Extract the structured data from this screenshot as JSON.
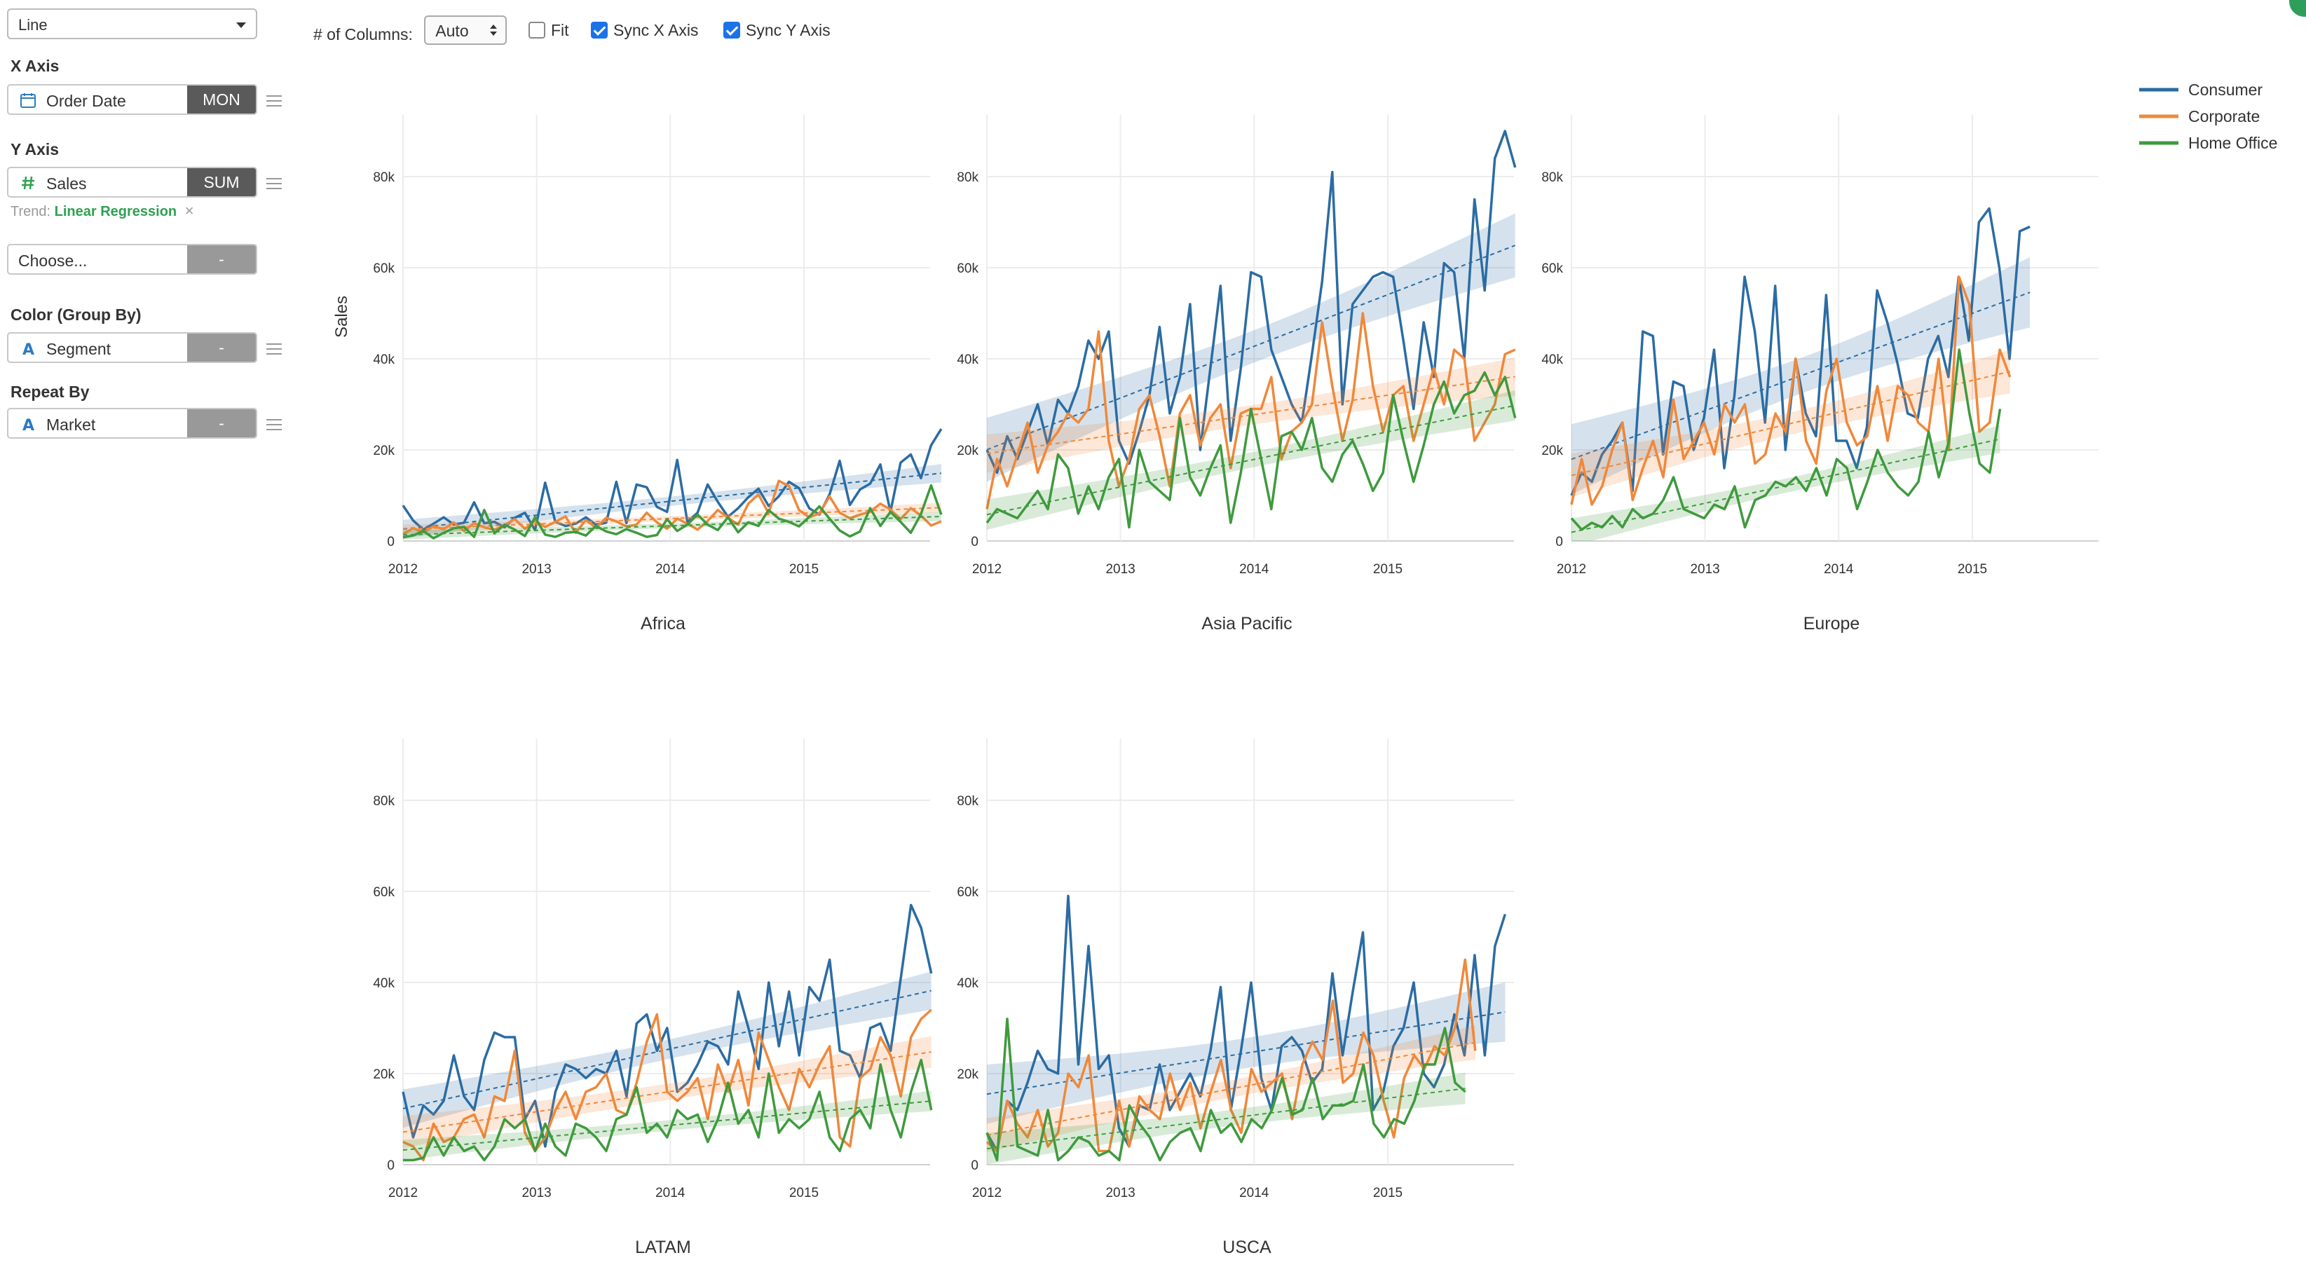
{
  "sidebar": {
    "chart_type": "Line",
    "x_axis": {
      "label": "X Axis",
      "field": "Order Date",
      "agg": "MON",
      "icon": "calendar-icon"
    },
    "y_axis": {
      "label": "Y Axis",
      "field": "Sales",
      "agg": "SUM",
      "icon": "hash-icon"
    },
    "trend": {
      "label": "Trend:",
      "value": "Linear Regression",
      "remove": "×"
    },
    "choose": {
      "field": "Choose...",
      "agg": "-"
    },
    "color": {
      "label": "Color (Group By)",
      "field": "Segment",
      "agg": "-",
      "icon": "text-a-icon"
    },
    "repeat": {
      "label": "Repeat By",
      "field": "Market",
      "agg": "-",
      "icon": "text-a-icon"
    }
  },
  "controls": {
    "columns_label": "# of Columns:",
    "columns_value": "Auto",
    "fit_label": "Fit",
    "fit_checked": false,
    "sync_x_label": "Sync X Axis",
    "sync_x_checked": true,
    "sync_y_label": "Sync Y Axis",
    "sync_y_checked": true
  },
  "chart_data": {
    "type": "line",
    "ylabel": "Sales",
    "ylim": [
      0,
      92000
    ],
    "y_ticks": [
      0,
      20000,
      40000,
      60000,
      80000
    ],
    "y_tick_labels": [
      "0",
      "20k",
      "40k",
      "60k",
      "80k"
    ],
    "x_tick_labels": [
      "2012",
      "2013",
      "2014",
      "2015"
    ],
    "x_range": [
      "2012-01",
      "2015-12"
    ],
    "trend": "linear regression with confidence band",
    "legend_position": "top-right",
    "colors": {
      "Consumer": "#2b6ca3",
      "Corporate": "#f0883a",
      "Home Office": "#3f9a3e"
    },
    "series_names": [
      "Consumer",
      "Corporate",
      "Home Office"
    ],
    "facets": [
      {
        "title": "Africa",
        "series": [
          {
            "name": "Consumer",
            "values": [
              7800,
              4500,
              2500,
              3800,
              5200,
              3600,
              4000,
              8500,
              3900,
              4200,
              3000,
              5100,
              6200,
              2400,
              12800,
              4200,
              3300,
              3800,
              5200,
              3600,
              4000,
              13000,
              3900,
              12400,
              11800,
              7500,
              6400,
              17800,
              4200,
              6200,
              12400,
              8600,
              5300,
              7200,
              9600,
              11500,
              7700,
              9800,
              13000,
              11600,
              7200,
              5800,
              10200,
              17600,
              7900,
              11300,
              12600,
              16800,
              6400,
              17200,
              19000,
              13800,
              21000,
              24600
            ]
          },
          {
            "name": "Corporate",
            "values": [
              1500,
              2800,
              1900,
              3200,
              2600,
              4100,
              2200,
              3900,
              3000,
              2500,
              3500,
              4800,
              2700,
              4400,
              3100,
              4200,
              5400,
              1800,
              4600,
              2900,
              5100,
              4300,
              3200,
              3600,
              6200,
              4100,
              2700,
              4900,
              3800,
              2500,
              4400,
              6800,
              5100,
              3600,
              8200,
              10200,
              6100,
              13200,
              12100,
              6800,
              5200,
              6000,
              9800,
              6200,
              5000,
              5800,
              6400,
              8200,
              6900,
              4800,
              7200,
              5600,
              3400,
              4300
            ]
          },
          {
            "name": "Home Office",
            "values": [
              800,
              1200,
              2200,
              600,
              1800,
              2800,
              3100,
              900,
              6800,
              1700,
              3600,
              2500,
              1100,
              5200,
              1400,
              900,
              1800,
              2000,
              1200,
              3300,
              2100,
              1500,
              2600,
              1800,
              900,
              1300,
              4800,
              2200,
              3600,
              5800,
              3600,
              2400,
              5200,
              1900,
              4100,
              3300,
              6800,
              4900,
              4200,
              3200,
              5300,
              7600,
              4900,
              2300,
              1000,
              2100,
              7200,
              3300,
              6400,
              4200,
              1800,
              5900,
              12200,
              5800
            ]
          }
        ]
      },
      {
        "title": "Asia Pacific",
        "series": [
          {
            "name": "Consumer",
            "values": [
              20000,
              15000,
              23000,
              18000,
              24000,
              30000,
              21000,
              31000,
              28000,
              34000,
              44000,
              40000,
              46000,
              22000,
              17000,
              24000,
              32000,
              47000,
              28000,
              36000,
              52000,
              20000,
              38000,
              56000,
              22000,
              38000,
              59000,
              58000,
              42000,
              36000,
              30000,
              26000,
              41000,
              57000,
              81000,
              30000,
              52000,
              55000,
              58000,
              59000,
              58000,
              44000,
              29000,
              48000,
              36000,
              61000,
              59000,
              40000,
              75000,
              55000,
              84000,
              90000,
              82000
            ]
          },
          {
            "name": "Corporate",
            "values": [
              7000,
              18000,
              12000,
              19000,
              26000,
              15000,
              21000,
              24000,
              28000,
              26000,
              29000,
              46000,
              22000,
              12000,
              18000,
              29000,
              32000,
              23000,
              12000,
              28000,
              32000,
              21000,
              27000,
              30000,
              16000,
              28000,
              29000,
              29000,
              36000,
              18000,
              24000,
              26000,
              30000,
              48000,
              34000,
              22000,
              31000,
              50000,
              34000,
              24000,
              32000,
              34000,
              22000,
              30000,
              38000,
              30000,
              42000,
              40000,
              22000,
              26000,
              30000,
              41000,
              42000
            ]
          },
          {
            "name": "Home Office",
            "values": [
              4000,
              7000,
              6000,
              5000,
              8000,
              11000,
              7000,
              19000,
              16000,
              6000,
              12000,
              7000,
              14000,
              18000,
              3000,
              20000,
              13000,
              11000,
              9000,
              27000,
              14000,
              10000,
              16000,
              21000,
              4000,
              15000,
              29000,
              18000,
              7000,
              23000,
              24000,
              20000,
              27000,
              16000,
              13000,
              19000,
              22000,
              17000,
              11000,
              15000,
              32000,
              22000,
              13000,
              21000,
              30000,
              35000,
              28000,
              32000,
              33000,
              37000,
              32000,
              36000,
              27000
            ]
          }
        ]
      },
      {
        "title": "Europe",
        "series": [
          {
            "name": "Consumer",
            "values": [
              10000,
              15000,
              13000,
              19000,
              22000,
              26000,
              11000,
              46000,
              45000,
              19000,
              35000,
              34000,
              20000,
              27000,
              42000,
              16000,
              32000,
              58000,
              46000,
              26000,
              56000,
              20000,
              40000,
              28000,
              23000,
              54000,
              22000,
              22000,
              16000,
              25000,
              55000,
              48000,
              39000,
              28000,
              27000,
              40000,
              45000,
              36000,
              58000,
              44000,
              70000,
              73000,
              60000,
              40000,
              68000,
              69000
            ]
          },
          {
            "name": "Corporate",
            "values": [
              8000,
              18000,
              8000,
              12000,
              20000,
              26000,
              9000,
              16000,
              22000,
              14000,
              31000,
              18000,
              22000,
              26000,
              19000,
              30000,
              26000,
              30000,
              17000,
              19000,
              28000,
              24000,
              40000,
              22000,
              17000,
              33000,
              40000,
              26000,
              21000,
              23000,
              34000,
              22000,
              34000,
              32000,
              26000,
              24000,
              40000,
              20000,
              58000,
              52000,
              24000,
              26000,
              42000,
              36000
            ]
          },
          {
            "name": "Home Office",
            "values": [
              5000,
              2500,
              4000,
              3000,
              5500,
              3000,
              7000,
              5000,
              6000,
              9000,
              14000,
              7000,
              6000,
              5000,
              8000,
              7000,
              12000,
              3000,
              9000,
              10000,
              13000,
              12000,
              14000,
              11000,
              16000,
              10000,
              18000,
              16000,
              7000,
              13000,
              20000,
              15000,
              12000,
              10000,
              13000,
              24000,
              14000,
              22000,
              42000,
              28000,
              17000,
              15000,
              29000
            ]
          }
        ]
      },
      {
        "title": "LATAM",
        "series": [
          {
            "name": "Consumer",
            "values": [
              16000,
              6000,
              13000,
              11000,
              14000,
              24000,
              15000,
              12000,
              23000,
              29000,
              28000,
              28000,
              10000,
              14000,
              4000,
              16000,
              22000,
              21000,
              19000,
              21000,
              20000,
              25000,
              15000,
              31000,
              33000,
              25000,
              30000,
              16000,
              18000,
              22000,
              27000,
              26000,
              22000,
              38000,
              30000,
              21000,
              40000,
              26000,
              38000,
              24000,
              39000,
              36000,
              45000,
              25000,
              24000,
              19000,
              30000,
              31000,
              25000,
              41000,
              57000,
              52000,
              42000
            ]
          },
          {
            "name": "Corporate",
            "values": [
              5000,
              4000,
              1000,
              9000,
              5000,
              6000,
              10000,
              11000,
              6000,
              15000,
              14000,
              25000,
              7000,
              3000,
              6000,
              12000,
              16000,
              10000,
              16000,
              17000,
              20000,
              12000,
              11000,
              18000,
              27000,
              33000,
              16000,
              14000,
              16000,
              19000,
              10000,
              22000,
              16000,
              23000,
              13000,
              29000,
              23000,
              17000,
              12000,
              21000,
              17000,
              22000,
              26000,
              6000,
              4000,
              19000,
              21000,
              28000,
              24000,
              15000,
              28000,
              32000,
              34000
            ]
          },
          {
            "name": "Home Office",
            "values": [
              1000,
              1000,
              1500,
              6000,
              2000,
              6000,
              3000,
              4000,
              1000,
              4000,
              10000,
              8000,
              10000,
              3000,
              9000,
              4000,
              2000,
              9000,
              8000,
              6000,
              3000,
              10000,
              11000,
              17000,
              7000,
              9000,
              6000,
              12000,
              10000,
              11000,
              5000,
              10000,
              18000,
              9000,
              12000,
              6000,
              20000,
              7000,
              10000,
              8000,
              10000,
              16000,
              6000,
              3000,
              10000,
              12000,
              8000,
              22000,
              12000,
              6000,
              16000,
              23000,
              12000
            ]
          }
        ]
      },
      {
        "title": "USCA",
        "series": [
          {
            "name": "Consumer",
            "values": [
              7000,
              3000,
              14000,
              12000,
              18000,
              25000,
              21000,
              20000,
              59000,
              22000,
              48000,
              21000,
              24000,
              8000,
              4000,
              13000,
              12000,
              22000,
              12000,
              16000,
              20000,
              15000,
              25000,
              39000,
              12000,
              25000,
              40000,
              19000,
              12000,
              26000,
              28000,
              25000,
              18000,
              21000,
              42000,
              24000,
              38000,
              51000,
              12000,
              16000,
              26000,
              30000,
              40000,
              20000,
              17000,
              22000,
              33000,
              24000,
              46000,
              24000,
              48000,
              55000
            ]
          },
          {
            "name": "Corporate",
            "values": [
              5000,
              3000,
              14000,
              9000,
              6000,
              12000,
              4000,
              7000,
              20000,
              17000,
              24000,
              3000,
              3000,
              14000,
              4000,
              15000,
              12000,
              10000,
              20000,
              12000,
              18000,
              8000,
              16000,
              23000,
              12000,
              7000,
              21000,
              16000,
              18000,
              20000,
              10000,
              22000,
              27000,
              23000,
              36000,
              18000,
              20000,
              29000,
              24000,
              14000,
              6000,
              19000,
              24000,
              21000,
              26000,
              24000,
              30000,
              45000,
              25000
            ]
          },
          {
            "name": "Home Office",
            "values": [
              7000,
              1000,
              32000,
              4000,
              3000,
              2000,
              12000,
              1000,
              3000,
              6000,
              5000,
              2000,
              3000,
              1000,
              13000,
              9000,
              6000,
              1000,
              5000,
              7000,
              8000,
              3000,
              12000,
              7000,
              9000,
              5000,
              10000,
              8000,
              12000,
              19000,
              11000,
              12000,
              19000,
              10000,
              13000,
              13000,
              14000,
              22000,
              9000,
              6000,
              10000,
              9000,
              14000,
              22000,
              22000,
              30000,
              18000,
              16000
            ]
          }
        ]
      }
    ]
  }
}
